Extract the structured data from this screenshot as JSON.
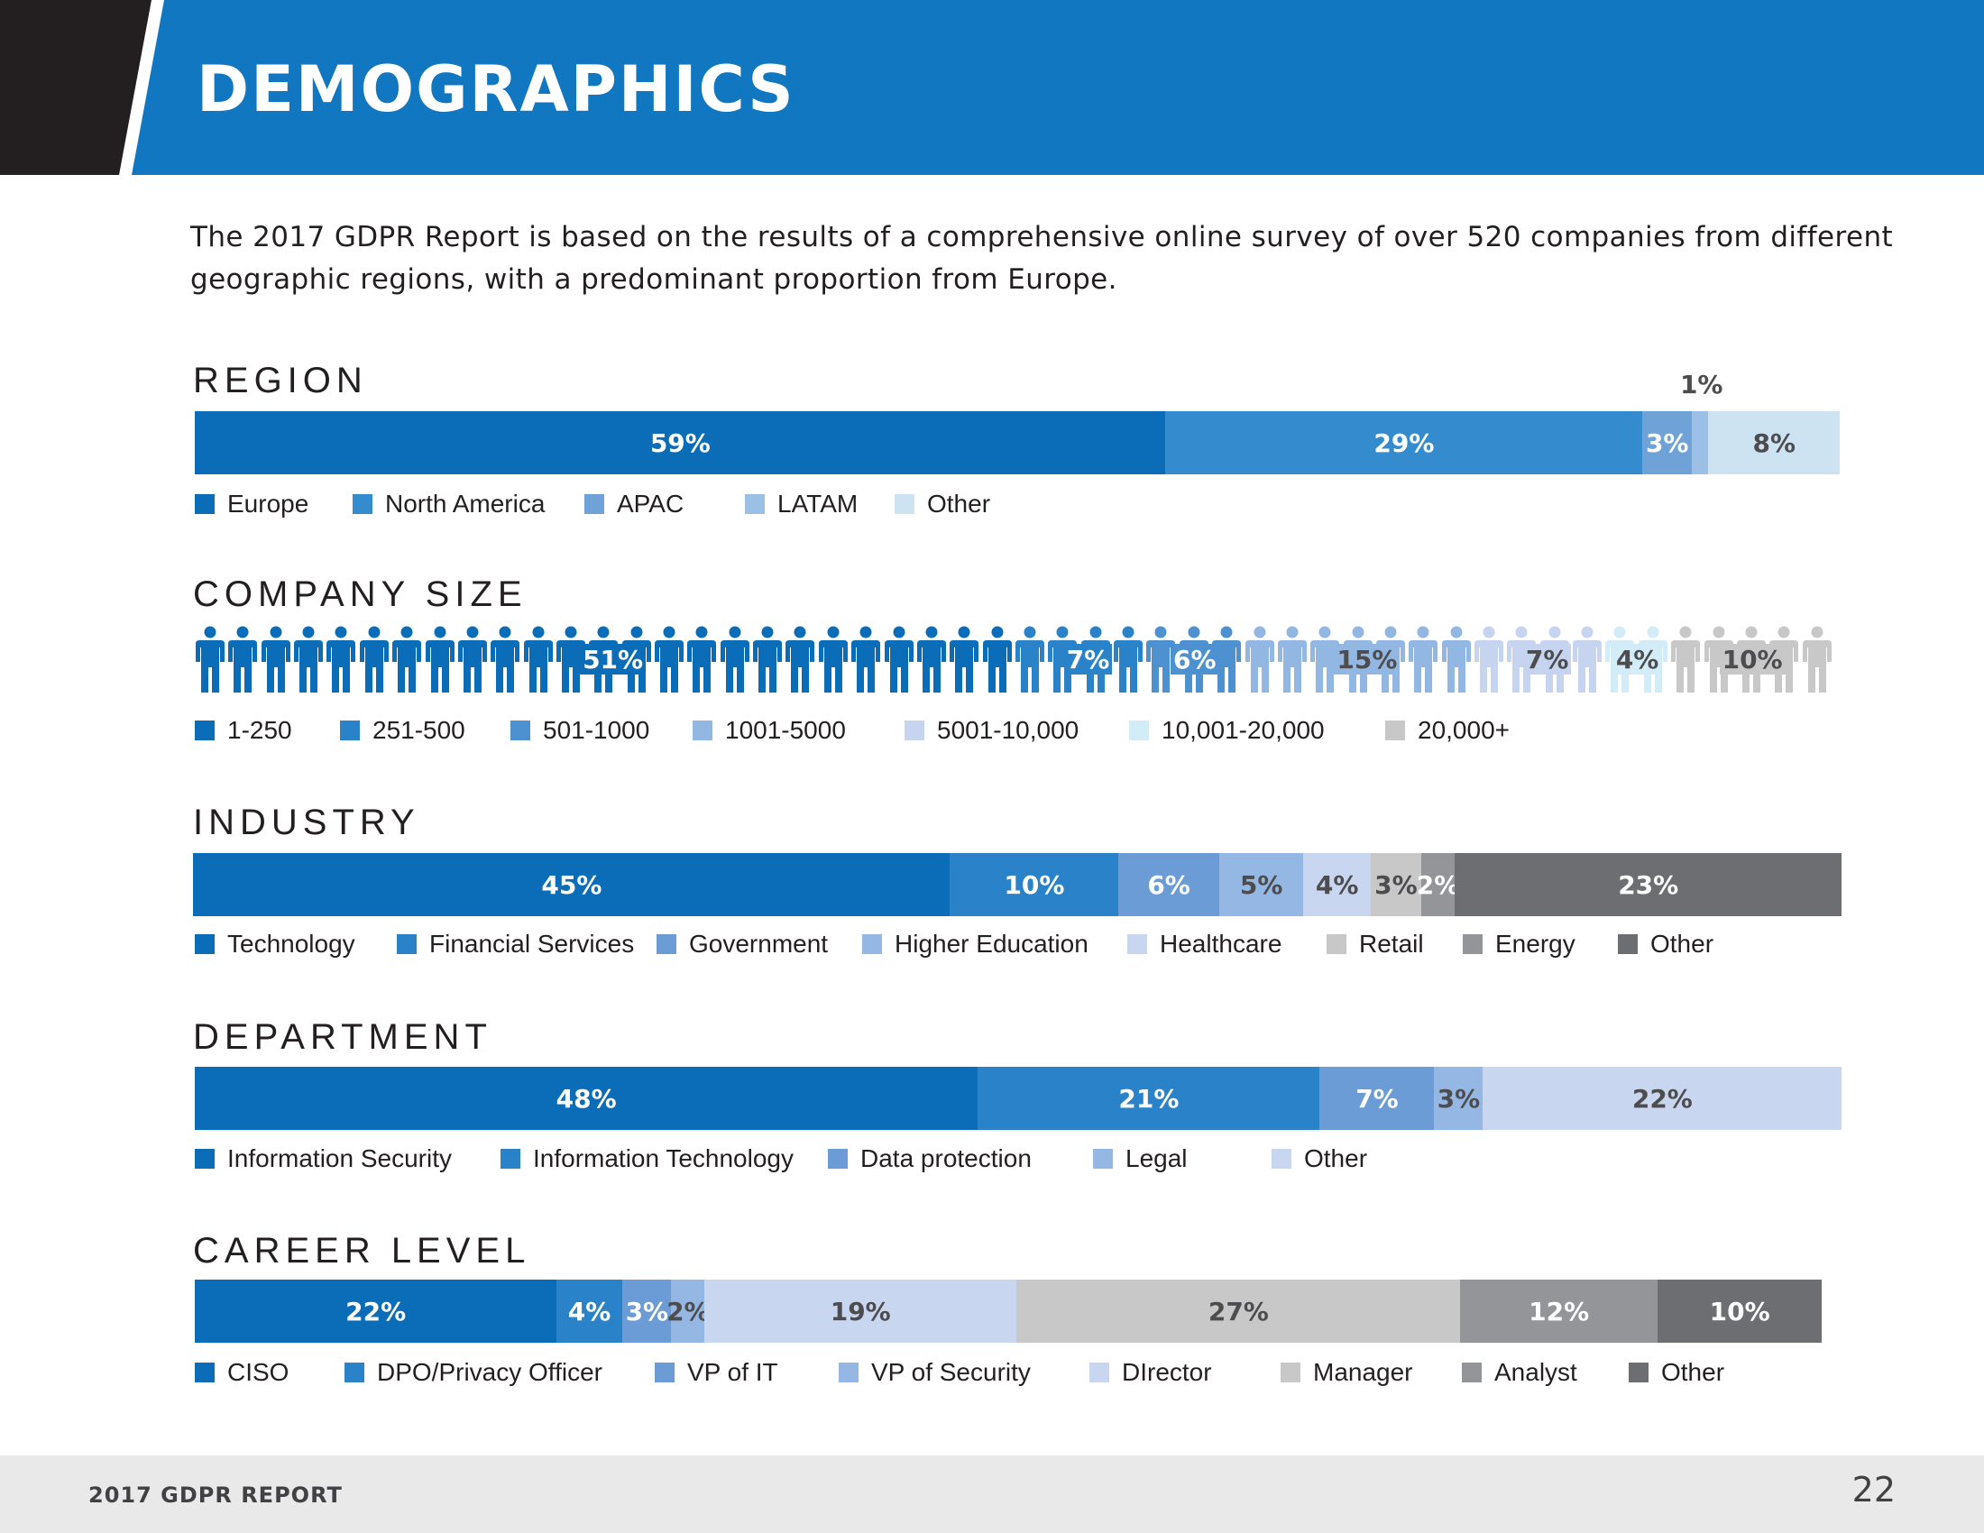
{
  "header": {
    "title": "DEMOGRAPHICS"
  },
  "intro": "The 2017 GDPR Report is based on the results of a comprehensive online survey of over 520 companies from different geographic regions, with a predominant proportion from Europe.",
  "footer": {
    "report_title": "2017 GDPR REPORT",
    "page_number": "22"
  },
  "chart_data": [
    {
      "id": "region",
      "type": "bar",
      "title": "REGION",
      "categories": [
        "Europe",
        "North America",
        "APAC",
        "LATAM",
        "Other"
      ],
      "values": [
        59,
        29,
        3,
        1,
        8
      ],
      "labels": [
        "59%",
        "29%",
        "3%",
        "1%",
        "8%"
      ],
      "colors": [
        "#0b6db8",
        "#348cce",
        "#6fa3d8",
        "#9cbfe6",
        "#cde3f2"
      ]
    },
    {
      "id": "company_size",
      "type": "bar",
      "title": "COMPANY SIZE",
      "categories": [
        "1-250",
        "251-500",
        "501-1000",
        "1001-5000",
        "5001-10,000",
        "10,001-20,000",
        "20,000+"
      ],
      "values": [
        51,
        7,
        6,
        15,
        7,
        4,
        10
      ],
      "labels": [
        "51%",
        "7%",
        "6%",
        "15%",
        "7%",
        "4%",
        "10%"
      ],
      "colors": [
        "#0b6db8",
        "#2a83c8",
        "#4d91d0",
        "#92b7e2",
        "#c6d4ef",
        "#d2ecf8",
        "#c8c8c9"
      ]
    },
    {
      "id": "industry",
      "type": "bar",
      "title": "INDUSTRY",
      "categories": [
        "Technology",
        "Financial Services",
        "Government",
        "Higher Education",
        "Healthcare",
        "Retail",
        "Energy",
        "Other"
      ],
      "values": [
        45,
        10,
        6,
        5,
        4,
        3,
        2,
        23
      ],
      "labels": [
        "45%",
        "10%",
        "6%",
        "5%",
        "4%",
        "3%",
        "2%",
        "23%"
      ],
      "colors": [
        "#0b6db8",
        "#2a83c8",
        "#6b9cd6",
        "#94b7e3",
        "#c9d6ef",
        "#c8c8c9",
        "#939598",
        "#6d6e71"
      ]
    },
    {
      "id": "department",
      "type": "bar",
      "title": "DEPARTMENT",
      "categories": [
        "Information Security",
        "Information Technology",
        "Data protection",
        "Legal",
        "Other"
      ],
      "values": [
        48,
        21,
        7,
        3,
        22
      ],
      "labels": [
        "48%",
        "21%",
        "7%",
        "3%",
        "22%"
      ],
      "colors": [
        "#0b6db8",
        "#2a83c8",
        "#6b9cd6",
        "#94b7e3",
        "#c9d6ef"
      ]
    },
    {
      "id": "career_level",
      "type": "bar",
      "title": "CAREER LEVEL",
      "categories": [
        "CISO",
        "DPO/Privacy Officer",
        "VP of IT",
        "VP of Security",
        "DIrector",
        "Manager",
        "Analyst",
        "Other"
      ],
      "values": [
        22,
        4,
        3,
        2,
        19,
        27,
        12,
        10
      ],
      "labels": [
        "22%",
        "4%",
        "3%",
        "2%",
        "19%",
        "27%",
        "12%",
        "10%"
      ],
      "colors": [
        "#0b6db8",
        "#2a83c8",
        "#6b9cd6",
        "#94b7e3",
        "#c9d6ef",
        "#c8c8c9",
        "#939598",
        "#6d6e71"
      ]
    }
  ]
}
